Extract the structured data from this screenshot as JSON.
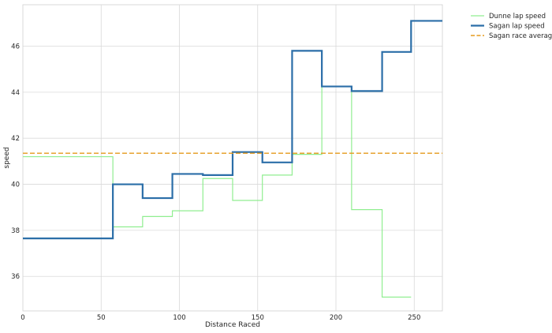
{
  "chart_data": {
    "type": "line",
    "step": "post",
    "xlabel": "Distance Raced",
    "ylabel": "speed",
    "xlim": [
      0,
      268
    ],
    "ylim": [
      34.5,
      47.8
    ],
    "xticks": [
      0,
      50,
      100,
      150,
      200,
      250
    ],
    "yticks": [
      36,
      38,
      40,
      42,
      44,
      46
    ],
    "grid": true,
    "legend_position": "outside-right",
    "series": [
      {
        "name": "Dunne lap speed",
        "color": "#90ee90",
        "x": [
          0,
          57.5,
          76.5,
          95.5,
          115,
          134,
          153,
          172,
          191,
          210,
          229.5,
          248
        ],
        "y": [
          41.2,
          38.15,
          38.6,
          38.85,
          40.25,
          39.3,
          40.4,
          41.3,
          44.25,
          38.9,
          35.1,
          35.1
        ]
      },
      {
        "name": "Sagan lap speed",
        "color": "#2b6ea8",
        "x": [
          0,
          57.5,
          76.5,
          95.5,
          115,
          134,
          153,
          172,
          191,
          210,
          229.5,
          248,
          268
        ],
        "y": [
          37.65,
          40.0,
          39.4,
          40.45,
          40.4,
          41.4,
          40.95,
          45.8,
          44.25,
          44.05,
          45.75,
          47.1,
          47.1
        ]
      },
      {
        "name": "Sagan race average",
        "color": "#e59a1b",
        "style": "dashed",
        "x": [
          0,
          268
        ],
        "y": [
          41.35,
          41.35
        ]
      }
    ]
  }
}
